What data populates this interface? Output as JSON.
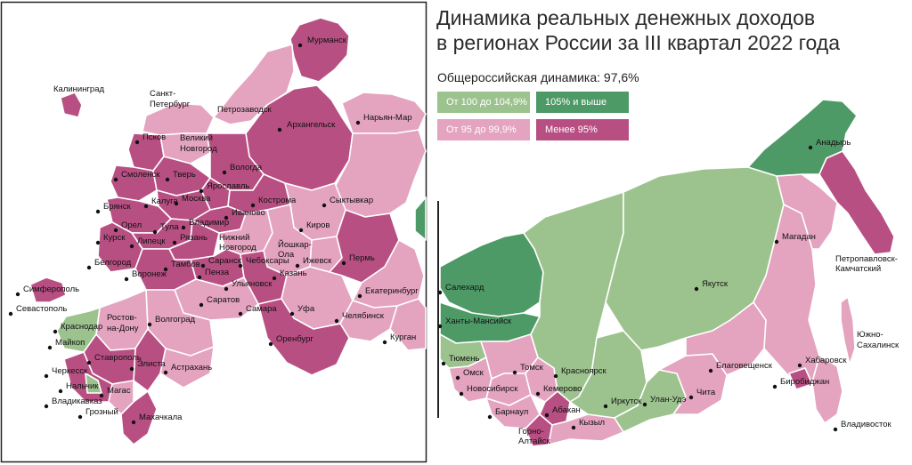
{
  "title_line1": "Динамика реальных денежных доходов",
  "title_line2": "в регионах России за III квартал 2022 года",
  "subtitle": "Общероссийская динамика: 97,6%",
  "colors": {
    "c100_105": "#9cc38e",
    "c105": "#4e9a66",
    "c95_100": "#e4a3bf",
    "c_below95": "#b84f83",
    "line": "#ffffff"
  },
  "legend": {
    "c100_105": "От 100 до 104,9%",
    "c105": "105% и выше",
    "c95_100": "От 95 до 99,9%",
    "c_below95": "Менее 95%"
  },
  "cities": [
    {
      "name": "Мурманск"
    },
    {
      "name": "Калининград"
    },
    {
      "name": "Санкт-"
    },
    {
      "name": "Петербург"
    },
    {
      "name": "Петрозаводск"
    },
    {
      "name": "Нарьян-Мар"
    },
    {
      "name": "Архангельск"
    },
    {
      "name": "Псков"
    },
    {
      "name": "Великий"
    },
    {
      "name": "Новгород"
    },
    {
      "name": "Вологда"
    },
    {
      "name": "Смоленск"
    },
    {
      "name": "Тверь"
    },
    {
      "name": "Ярославль"
    },
    {
      "name": "Сыктывкар"
    },
    {
      "name": "Калуга"
    },
    {
      "name": "Москва"
    },
    {
      "name": "Кострома"
    },
    {
      "name": "Брянск"
    },
    {
      "name": "Иваново"
    },
    {
      "name": "Владимир"
    },
    {
      "name": "Киров"
    },
    {
      "name": "Орел"
    },
    {
      "name": "Тула"
    },
    {
      "name": "Курск"
    },
    {
      "name": "Липецк"
    },
    {
      "name": "Рязань"
    },
    {
      "name": "Нижний"
    },
    {
      "name": "Новгород"
    },
    {
      "name": "Йошкар-"
    },
    {
      "name": "Ола"
    },
    {
      "name": "Пермь"
    },
    {
      "name": "Белгород"
    },
    {
      "name": "Тамбов"
    },
    {
      "name": "Саранск"
    },
    {
      "name": "Чебоксары"
    },
    {
      "name": "Ижевск"
    },
    {
      "name": "Воронеж"
    },
    {
      "name": "Пенза"
    },
    {
      "name": "Казань"
    },
    {
      "name": "Ульяновск"
    },
    {
      "name": "Екатеринбург"
    },
    {
      "name": "Симферополь"
    },
    {
      "name": "Саратов"
    },
    {
      "name": "Самара"
    },
    {
      "name": "Севастополь"
    },
    {
      "name": "Ростов-"
    },
    {
      "name": "на-Дону"
    },
    {
      "name": "Волгоград"
    },
    {
      "name": "Уфа"
    },
    {
      "name": "Челябинск"
    },
    {
      "name": "Краснодар"
    },
    {
      "name": "Майкоп"
    },
    {
      "name": "Оренбург"
    },
    {
      "name": "Курган"
    },
    {
      "name": "Ставрополь"
    },
    {
      "name": "Элиста"
    },
    {
      "name": "Астрахань"
    },
    {
      "name": "Черкесск"
    },
    {
      "name": "Нальчик"
    },
    {
      "name": "Магас"
    },
    {
      "name": "Владикавказ"
    },
    {
      "name": "Грозный"
    },
    {
      "name": "Махачкала"
    },
    {
      "name": "Анадырь"
    },
    {
      "name": "Магадан"
    },
    {
      "name": "Петропавловск-"
    },
    {
      "name": "Камчатский"
    },
    {
      "name": "Салехард"
    },
    {
      "name": "Якутск"
    },
    {
      "name": "Ханты-Мансийск"
    },
    {
      "name": "Южно-"
    },
    {
      "name": "Сахалинск"
    },
    {
      "name": "Тюмень"
    },
    {
      "name": "Благовещенск"
    },
    {
      "name": "Хабаровск"
    },
    {
      "name": "Томск"
    },
    {
      "name": "Красноярск"
    },
    {
      "name": "Омск"
    },
    {
      "name": "Биробиджан"
    },
    {
      "name": "Новосибирск"
    },
    {
      "name": "Кемерово"
    },
    {
      "name": "Иркутск"
    },
    {
      "name": "Улан-Удэ"
    },
    {
      "name": "Чита"
    },
    {
      "name": "Барнаул"
    },
    {
      "name": "Абакан"
    },
    {
      "name": "Кызыл"
    },
    {
      "name": "Горно-"
    },
    {
      "name": "Алтайск"
    },
    {
      "name": "Владивосток"
    }
  ]
}
